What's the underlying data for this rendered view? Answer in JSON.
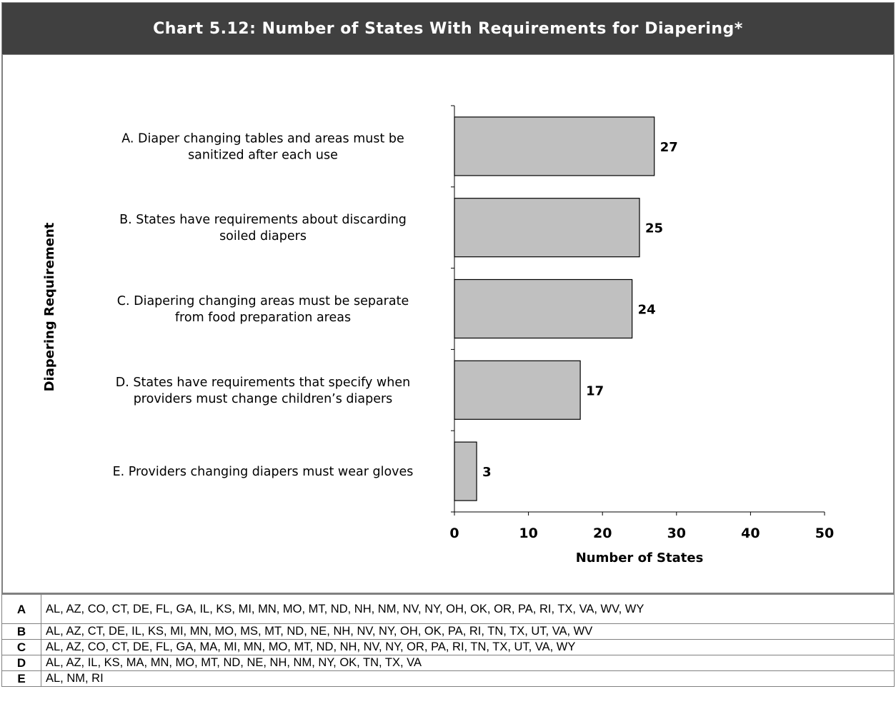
{
  "title": "Chart 5.12: Number of States With Requirements for Diapering*",
  "chart_data": {
    "type": "bar",
    "orientation": "horizontal",
    "categories": [
      [
        "A. Diaper changing tables and areas must be",
        "sanitized after each use"
      ],
      [
        "B. States have requirements about discarding",
        "soiled diapers"
      ],
      [
        "C. Diapering changing areas must be separate",
        "from food preparation areas"
      ],
      [
        "D. States have requirements that specify when",
        "providers must change children’s diapers"
      ],
      [
        "E. Providers changing diapers must wear gloves"
      ]
    ],
    "values": [
      27,
      25,
      24,
      17,
      3
    ],
    "data_labels": [
      "27",
      "25",
      "24",
      "17",
      "3"
    ],
    "xlabel": "Number of States",
    "ylabel": "Diapering Requirement",
    "xlim": [
      0,
      50
    ],
    "xticks": [
      "0",
      "10",
      "20",
      "30",
      "40",
      "50"
    ],
    "grid": false,
    "bar_color": "#c0c0c0",
    "bar_edge_color": "#000000"
  },
  "states_table": [
    {
      "key": "A",
      "states": "AL, AZ, CO, CT, DE, FL, GA, IL, KS, MI, MN, MO, MT, ND, NH, NM, NV, NY, OH, OK, OR, PA, RI, TX, VA, WV, WY"
    },
    {
      "key": "B",
      "states": "AL, AZ, CT, DE, IL, KS, MI, MN, MO, MS, MT, ND, NE, NH, NV, NY, OH, OK, PA, RI, TN, TX, UT, VA, WV"
    },
    {
      "key": "C",
      "states": "AL, AZ, CO, CT, DE, FL, GA, MA, MI, MN, MO, MT, ND, NH, NV, NY, OR, PA, RI, TN, TX, UT, VA, WY"
    },
    {
      "key": "D",
      "states": "AL, AZ, IL, KS, MA, MN, MO, MT, ND, NE, NH, NM, NY, OK, TN, TX, VA"
    },
    {
      "key": "E",
      "states": "AL, NM, RI"
    }
  ],
  "colors": {
    "title_background": "#404040",
    "title_text": "#ffffff"
  }
}
